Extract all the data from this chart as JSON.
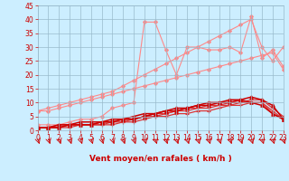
{
  "x": [
    0,
    1,
    2,
    3,
    4,
    5,
    6,
    7,
    8,
    9,
    10,
    11,
    12,
    13,
    14,
    15,
    16,
    17,
    18,
    19,
    20,
    21,
    22,
    23
  ],
  "series": [
    {
      "color": "#ff8888",
      "linewidth": 0.8,
      "marker": "D",
      "markersize": 2.0,
      "values": [
        7,
        7,
        8,
        9,
        10,
        11,
        12,
        13,
        14,
        15,
        16,
        17,
        18,
        19,
        20,
        21,
        22,
        23,
        24,
        25,
        26,
        27,
        28,
        22
      ]
    },
    {
      "color": "#ff8888",
      "linewidth": 0.8,
      "marker": "D",
      "markersize": 2.0,
      "values": [
        7,
        8,
        9,
        10,
        11,
        12,
        13,
        14,
        16,
        18,
        20,
        22,
        24,
        26,
        28,
        30,
        32,
        34,
        36,
        38,
        40,
        30,
        25,
        30
      ]
    },
    {
      "color": "#ff8888",
      "linewidth": 0.8,
      "marker": "D",
      "markersize": 2.0,
      "values": [
        2,
        2,
        2,
        3,
        4,
        4,
        5,
        8,
        9,
        10,
        39,
        39,
        29,
        20,
        30,
        30,
        29,
        29,
        30,
        28,
        41,
        26,
        29,
        23
      ]
    },
    {
      "color": "#dd3333",
      "linewidth": 0.9,
      "marker": "+",
      "markersize": 3,
      "values": [
        1,
        1,
        1,
        1,
        2,
        2,
        2,
        2,
        3,
        3,
        4,
        5,
        5,
        6,
        6,
        7,
        7,
        8,
        9,
        9,
        10,
        10,
        6,
        4
      ]
    },
    {
      "color": "#dd3333",
      "linewidth": 0.9,
      "marker": "+",
      "markersize": 3,
      "values": [
        1,
        1,
        1,
        2,
        2,
        2,
        2,
        3,
        3,
        4,
        5,
        5,
        6,
        7,
        7,
        8,
        8,
        9,
        9,
        10,
        10,
        10,
        7,
        4
      ]
    },
    {
      "color": "#dd3333",
      "linewidth": 0.9,
      "marker": "+",
      "markersize": 3,
      "values": [
        1,
        1,
        2,
        2,
        2,
        2,
        3,
        3,
        4,
        4,
        5,
        6,
        6,
        7,
        8,
        8,
        9,
        9,
        10,
        10,
        11,
        11,
        8,
        5
      ]
    },
    {
      "color": "#cc0000",
      "linewidth": 1.1,
      "marker": "^",
      "markersize": 2.5,
      "values": [
        1,
        1,
        1,
        2,
        2,
        2,
        3,
        3,
        4,
        4,
        5,
        6,
        7,
        7,
        8,
        9,
        9,
        10,
        10,
        11,
        12,
        11,
        9,
        4
      ]
    },
    {
      "color": "#cc0000",
      "linewidth": 1.1,
      "marker": "^",
      "markersize": 2.5,
      "values": [
        1,
        1,
        2,
        2,
        3,
        3,
        3,
        4,
        4,
        5,
        6,
        6,
        7,
        8,
        8,
        9,
        10,
        10,
        11,
        11,
        10,
        9,
        6,
        4
      ]
    }
  ],
  "xlabel": "Vent moyen/en rafales ( km/h )",
  "xlim": [
    0,
    23
  ],
  "ylim": [
    0,
    45
  ],
  "yticks": [
    0,
    5,
    10,
    15,
    20,
    25,
    30,
    35,
    40,
    45
  ],
  "xticks": [
    0,
    1,
    2,
    3,
    4,
    5,
    6,
    7,
    8,
    9,
    10,
    11,
    12,
    13,
    14,
    15,
    16,
    17,
    18,
    19,
    20,
    21,
    22,
    23
  ],
  "bg_color": "#cceeff",
  "grid_color": "#99bbcc",
  "xlabel_color": "#cc0000",
  "tick_color": "#cc0000",
  "tick_fontsize": 5.5,
  "xlabel_fontsize": 6.5
}
